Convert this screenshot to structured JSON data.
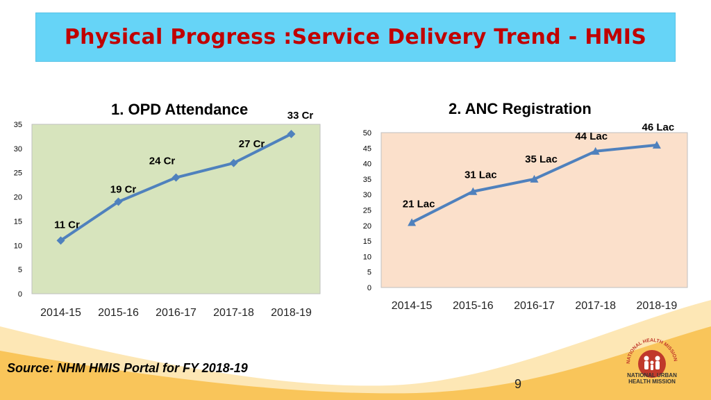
{
  "slide": {
    "title": "Physical Progress :Service Delivery Trend - HMIS",
    "source": "Source: NHM HMIS Portal  for FY 2018-19",
    "page_number": "9",
    "logo": {
      "arc_text": "NATIONAL HEALTH MISSION",
      "caption_line1": "NATIONAL URBAN",
      "caption_line2": "HEALTH MISSION"
    }
  },
  "colors": {
    "title_bg": "#66d4f7",
    "title_text": "#c00000",
    "series": "#4f81bd",
    "opd_plot_bg": "#d7e4bd",
    "anc_plot_bg": "#fbe0cb",
    "wave": "#f9c55a"
  },
  "chart_data": [
    {
      "type": "line",
      "title": "1. OPD Attendance",
      "categories": [
        "2014-15",
        "2015-16",
        "2016-17",
        "2017-18",
        "2018-19"
      ],
      "values": [
        11,
        19,
        24,
        27,
        33
      ],
      "data_labels": [
        "11 Cr",
        "19 Cr",
        "24 Cr",
        "27 Cr",
        "33 Cr"
      ],
      "ylim": [
        0,
        35
      ],
      "yticks": [
        0,
        5,
        10,
        15,
        20,
        25,
        30,
        35
      ],
      "xlabel": "",
      "ylabel": "",
      "grid": false,
      "legend": "none"
    },
    {
      "type": "line",
      "title": "2. ANC Registration",
      "categories": [
        "2014-15",
        "2015-16",
        "2016-17",
        "2017-18",
        "2018-19"
      ],
      "values": [
        21,
        31,
        35,
        44,
        46
      ],
      "data_labels": [
        "21 Lac",
        "31 Lac",
        "35 Lac",
        "44  Lac",
        "46  Lac"
      ],
      "ylim": [
        0,
        50
      ],
      "yticks": [
        0,
        5,
        10,
        15,
        20,
        25,
        30,
        35,
        40,
        45,
        50
      ],
      "xlabel": "",
      "ylabel": "",
      "grid": false,
      "legend": "none"
    }
  ]
}
